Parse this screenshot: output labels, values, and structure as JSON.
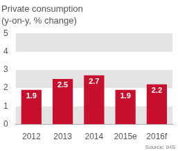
{
  "chart_data": {
    "type": "bar",
    "title": "Private consumption",
    "subtitle": "(y-on-y, % change)",
    "source": "Source: IHS",
    "categories": [
      "2012",
      "2013",
      "2014",
      "2015e",
      "2016f"
    ],
    "values": [
      1.9,
      2.5,
      2.7,
      1.9,
      2.2
    ],
    "color": "#c8102e",
    "ylim": [
      0,
      5
    ],
    "yticks": [
      0,
      1,
      2,
      3,
      4,
      5
    ],
    "grid": true,
    "data_labels": true
  }
}
